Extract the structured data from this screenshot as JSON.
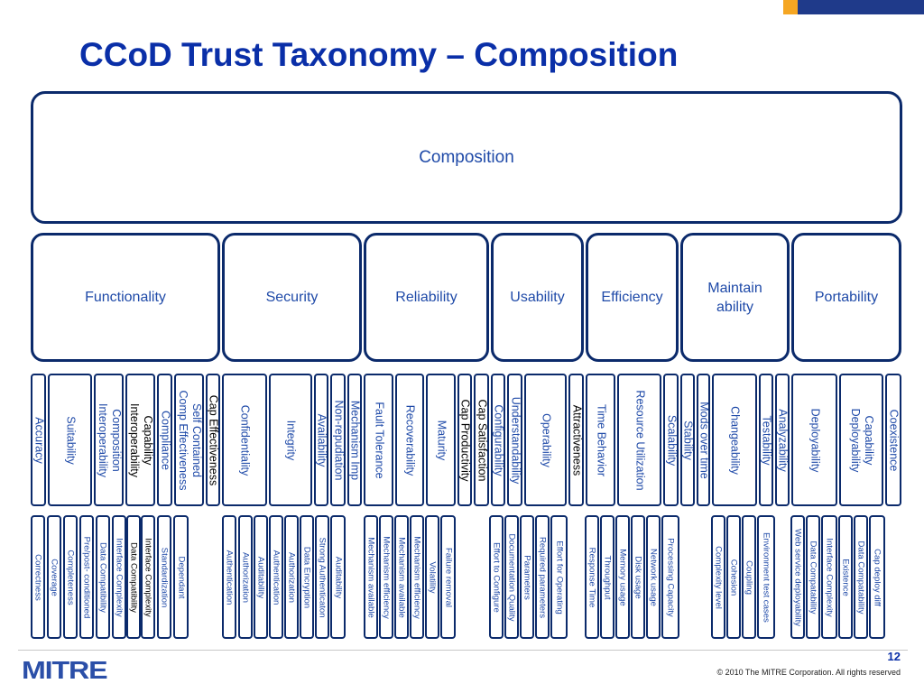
{
  "header": {
    "title": "CCoD Trust Taxonomy – Composition"
  },
  "root": {
    "label": "Composition"
  },
  "categories": [
    "Functionality",
    "Security",
    "Reliability",
    "Usability",
    "Efficiency",
    "Maintain\nability",
    "Portability"
  ],
  "subcharacteristics": [
    "Accuracy",
    "Suitability",
    "Composition\nInteroperability",
    "Capability\nInteroperability",
    "Compliance",
    "Self Contained\nComp Effectiveness",
    "Cap Effectiveness",
    "Confidentiality",
    "Integrity",
    "Availability",
    "Non-repudiation",
    "Mechanism Imp",
    "Fault Tolerance",
    "Recoverability",
    "Maturity",
    "Cap Productivity",
    "Cap Satisfaction",
    "Configurability",
    "Understandability",
    "Operability",
    "Attractiveness",
    "Time Behavior",
    "Resource Utilization",
    "Scalability",
    "Stability",
    "Mods over time",
    "Changeability",
    "Testability",
    "Analyzability",
    "Deployability",
    "Capability\nDeployability",
    "Coexistence"
  ],
  "metrics": [
    "Correctness",
    "Coverage",
    "Completeness",
    "Pre/post- conditioned",
    "Data Compatibility",
    "Interface Complexity",
    "Data Compatibility",
    "Interface Complexity",
    "Standardization",
    "Dependant",
    "Authentication",
    "Authorization",
    "Auditability",
    "Authentication",
    "Authorization",
    "Data Encryption",
    "Strong Authenticaton",
    "Auditability",
    "Mechanism available",
    "Mechanism efficiency",
    "Mechanism available",
    "Mechanism efficiency",
    "Volatility",
    "Failure removal",
    "Effort to Configure",
    "Documentation Quality",
    "Parameters",
    "Required parameters",
    "Effort for Operating",
    "Response Time",
    "Throughput",
    "Memory usage",
    "Disk usage",
    "Network usage",
    "Processing Capacity",
    "Complexity level",
    "Cohesion",
    "Coupling",
    "Environment test cases",
    "Web service deployability",
    "Data Compatability",
    "Interface Complexity",
    "Existence",
    "Data Compatability",
    "Cap deploy diff"
  ],
  "footer": {
    "page": "12",
    "copyright": "© 2010 The MITRE Corporation. All rights reserved",
    "logo": "MITRE"
  }
}
